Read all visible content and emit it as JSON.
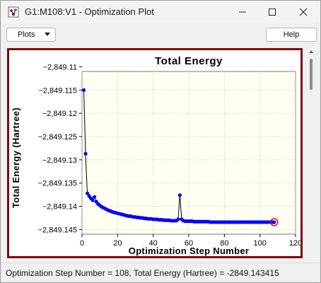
{
  "window": {
    "title": "G1:M108:V1 - Optimization Plot",
    "app_icon": "gaussview-app-icon"
  },
  "toolbar": {
    "plots_label": "Plots",
    "help_label": "Help"
  },
  "status": {
    "text": "Optimization Step Number = 108, Total Energy (Hartree) = -2849.143415"
  },
  "colors": {
    "frame_border": "#7b0b0b",
    "plot_bg": "#fffff2",
    "point": "#0000ff",
    "line": "#000000",
    "highlight": "#ff0000"
  },
  "chart_data": {
    "type": "line",
    "title": "Total Energy",
    "xlabel": "Optimization Step Number",
    "ylabel": "Total Energy (Hartree)",
    "xlim": [
      0,
      120
    ],
    "ylim": [
      -2849.146,
      -2849.111
    ],
    "xticks": [
      0,
      20,
      40,
      60,
      80,
      100,
      120
    ],
    "yticks": [
      -2849.11,
      -2849.115,
      -2849.12,
      -2849.125,
      -2849.13,
      -2849.135,
      -2849.14,
      -2849.145
    ],
    "xtick_labels": [
      "0",
      "20",
      "40",
      "60",
      "80",
      "100",
      "120"
    ],
    "ytick_labels": [
      "−2,849.11",
      "−2,849.115",
      "−2,849.12",
      "−2,849.125",
      "−2,849.13",
      "−2,849.135",
      "−2,849.14",
      "−2,849.145"
    ],
    "grid": true,
    "highlight_step": 108,
    "series": [
      {
        "x": [
          1,
          2,
          3,
          4,
          5,
          6,
          7,
          8,
          9,
          10,
          11,
          12,
          13,
          14,
          15,
          16,
          17,
          18,
          19,
          20,
          21,
          22,
          23,
          24,
          25,
          26,
          27,
          28,
          29,
          30,
          31,
          32,
          33,
          34,
          35,
          36,
          37,
          38,
          39,
          40,
          41,
          42,
          43,
          44,
          45,
          46,
          47,
          48,
          49,
          50,
          51,
          52,
          53,
          54,
          55,
          56,
          57,
          58,
          59,
          60,
          61,
          62,
          63,
          64,
          65,
          66,
          67,
          68,
          69,
          70,
          71,
          72,
          73,
          74,
          75,
          76,
          77,
          78,
          79,
          80,
          81,
          82,
          83,
          84,
          85,
          86,
          87,
          88,
          89,
          90,
          91,
          92,
          93,
          94,
          95,
          96,
          97,
          98,
          99,
          100,
          101,
          102,
          103,
          104,
          105,
          106,
          107,
          108
        ],
        "values": [
          -2849.115,
          -2849.1287,
          -2849.1372,
          -2849.1378,
          -2849.1383,
          -2849.1387,
          -2849.138,
          -2849.139,
          -2849.1395,
          -2849.1398,
          -2849.1401,
          -2849.1403,
          -2849.1405,
          -2849.1407,
          -2849.1409,
          -2849.141,
          -2849.1412,
          -2849.1413,
          -2849.1414,
          -2849.1415,
          -2849.1416,
          -2849.1417,
          -2849.1418,
          -2849.1419,
          -2849.142,
          -2849.1421,
          -2849.1421,
          -2849.1422,
          -2849.1423,
          -2849.1423,
          -2849.1424,
          -2849.1424,
          -2849.1425,
          -2849.1425,
          -2849.1426,
          -2849.1426,
          -2849.1427,
          -2849.1427,
          -2849.1427,
          -2849.1428,
          -2849.1428,
          -2849.1428,
          -2849.1429,
          -2849.1429,
          -2849.1429,
          -2849.143,
          -2849.143,
          -2849.143,
          -2849.143,
          -2849.1431,
          -2849.1431,
          -2849.1431,
          -2849.1431,
          -2849.1428,
          -2849.1376,
          -2849.1428,
          -2849.1431,
          -2849.1432,
          -2849.1432,
          -2849.1432,
          -2849.1432,
          -2849.1432,
          -2849.1433,
          -2849.1433,
          -2849.1433,
          -2849.1433,
          -2849.1433,
          -2849.1433,
          -2849.1433,
          -2849.1433,
          -2849.1433,
          -2849.1434,
          -2849.1434,
          -2849.1434,
          -2849.1434,
          -2849.1434,
          -2849.1434,
          -2849.1434,
          -2849.1434,
          -2849.1434,
          -2849.1434,
          -2849.1434,
          -2849.1434,
          -2849.1434,
          -2849.1434,
          -2849.1434,
          -2849.1434,
          -2849.1434,
          -2849.1434,
          -2849.1434,
          -2849.1434,
          -2849.1434,
          -2849.1434,
          -2849.1434,
          -2849.1434,
          -2849.1434,
          -2849.1434,
          -2849.1434,
          -2849.1434,
          -2849.1434,
          -2849.1434,
          -2849.1434,
          -2849.1434,
          -2849.1434,
          -2849.1434,
          -2849.1434,
          -2849.1434,
          -2849.143415
        ]
      }
    ]
  }
}
